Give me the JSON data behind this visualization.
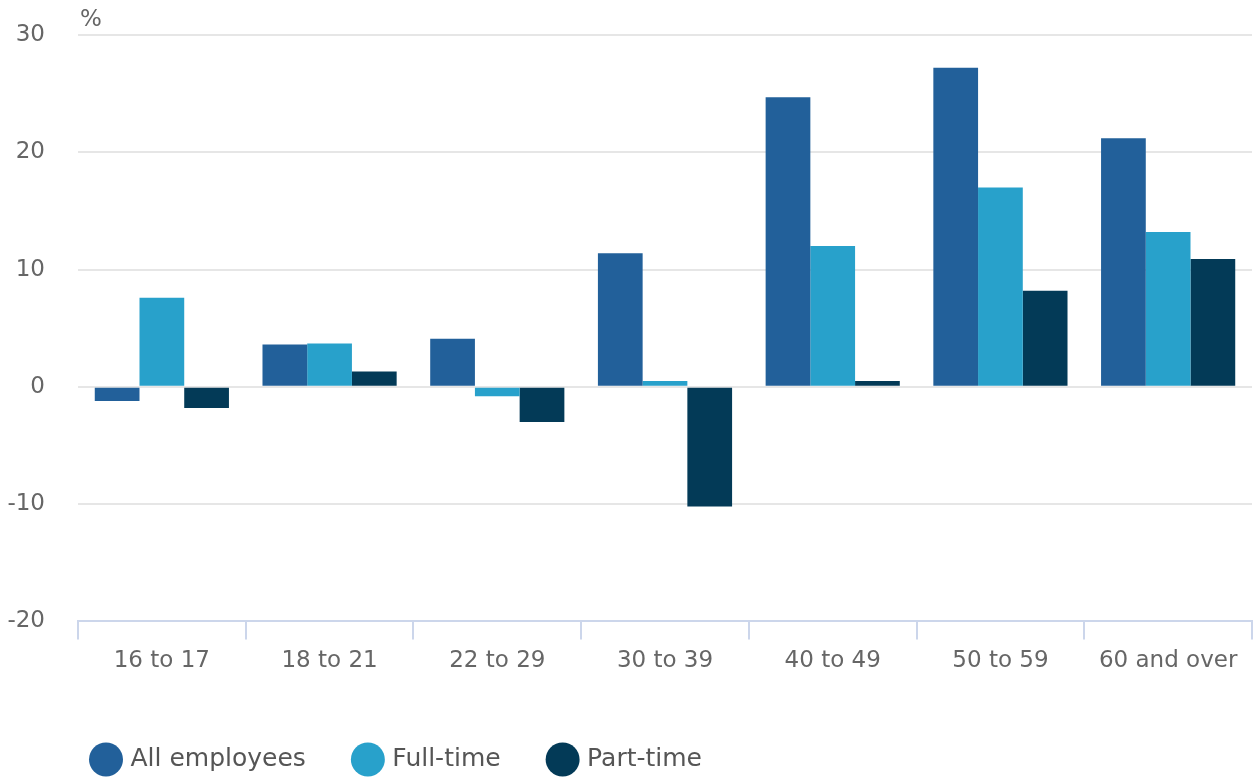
{
  "chart_data": {
    "type": "bar",
    "ylabel": "%",
    "categories": [
      "16 to 17",
      "18 to 21",
      "22 to 29",
      "30 to 39",
      "40 to 49",
      "50 to 59",
      "60 and over"
    ],
    "series": [
      {
        "name": "All employees",
        "color": "#22609a",
        "values": [
          -1.2,
          3.6,
          4.1,
          11.4,
          24.7,
          27.2,
          21.2
        ]
      },
      {
        "name": "Full-time",
        "color": "#28a1cb",
        "values": [
          7.6,
          3.7,
          -0.8,
          0.5,
          12.0,
          17.0,
          13.2
        ]
      },
      {
        "name": "Part-time",
        "color": "#033a57",
        "values": [
          -1.8,
          1.3,
          -3.0,
          -10.2,
          0.5,
          8.2,
          10.9
        ]
      }
    ],
    "ylim": [
      -20,
      30
    ],
    "yticks": [
      -20,
      -10,
      0,
      10,
      20,
      30
    ],
    "grid": "y",
    "legend": "bottom left"
  }
}
